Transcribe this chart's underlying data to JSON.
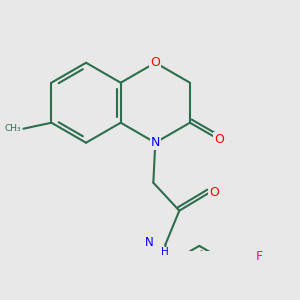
{
  "background_color": "#e8e8e8",
  "bond_color": "#2d6e4e",
  "atom_colors": {
    "O": "#ff0000",
    "N": "#0000ff",
    "F": "#ff00aa",
    "C": "#2d6e4e"
  },
  "figsize": [
    3.0,
    3.0
  ],
  "dpi": 100
}
